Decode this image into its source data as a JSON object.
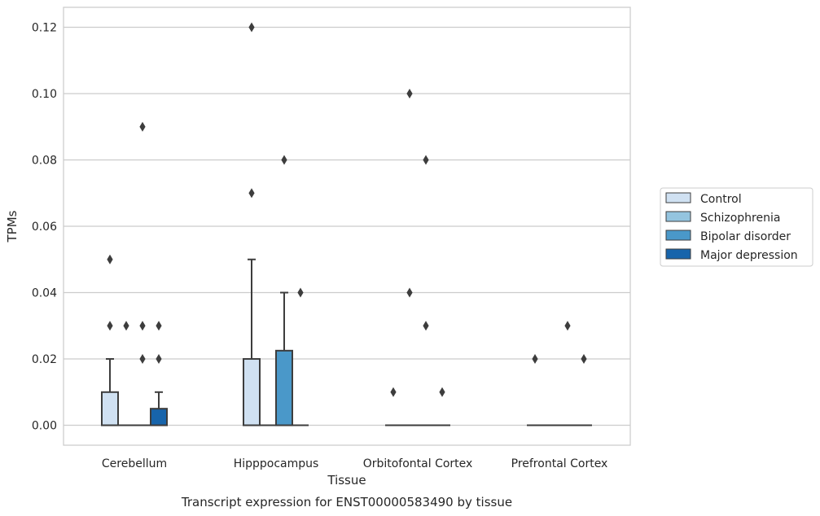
{
  "chart_data": {
    "type": "box",
    "xlabel": "Tissue",
    "ylabel": "TPMs",
    "caption": "Transcript expression for ENST00000583490 by tissue",
    "ylim": [
      -0.006,
      0.126
    ],
    "yticks": [
      0.0,
      0.02,
      0.04,
      0.06,
      0.08,
      0.1,
      0.12
    ],
    "ytick_labels": [
      "0.00",
      "0.02",
      "0.04",
      "0.06",
      "0.08",
      "0.10",
      "0.12"
    ],
    "grid": true,
    "legend_placement": "right",
    "categories": [
      "Cerebellum",
      "Hipppocampus",
      "Orbitofontal Cortex",
      "Prefrontal Cortex"
    ],
    "series": [
      {
        "name": "Control",
        "color": "#d0e1f2",
        "boxes": [
          {
            "q1": 0,
            "median": 0,
            "q3": 0.01,
            "whisker_low": 0,
            "whisker_high": 0.02,
            "outliers": [
              0.03,
              0.05
            ]
          },
          {
            "q1": 0,
            "median": 0,
            "q3": 0.02,
            "whisker_low": 0,
            "whisker_high": 0.05,
            "outliers": [
              0.07,
              0.12
            ]
          },
          {
            "q1": 0,
            "median": 0,
            "q3": 0,
            "whisker_low": 0,
            "whisker_high": 0,
            "outliers": [
              0.01
            ]
          },
          {
            "q1": 0,
            "median": 0,
            "q3": 0,
            "whisker_low": 0,
            "whisker_high": 0,
            "outliers": [
              0.02
            ]
          }
        ]
      },
      {
        "name": "Schizophrenia",
        "color": "#94c4df",
        "boxes": [
          {
            "q1": 0,
            "median": 0,
            "q3": 0,
            "whisker_low": 0,
            "whisker_high": 0,
            "outliers": [
              0.03
            ]
          },
          {
            "q1": 0,
            "median": 0,
            "q3": 0,
            "whisker_low": 0,
            "whisker_high": 0,
            "outliers": []
          },
          {
            "q1": 0,
            "median": 0,
            "q3": 0,
            "whisker_low": 0,
            "whisker_high": 0,
            "outliers": [
              0.04,
              0.1
            ]
          },
          {
            "q1": 0,
            "median": 0,
            "q3": 0,
            "whisker_low": 0,
            "whisker_high": 0,
            "outliers": []
          }
        ]
      },
      {
        "name": "Bipolar disorder",
        "color": "#4a98c9",
        "boxes": [
          {
            "q1": 0,
            "median": 0,
            "q3": 0,
            "whisker_low": 0,
            "whisker_high": 0,
            "outliers": [
              0.02,
              0.03,
              0.09
            ]
          },
          {
            "q1": 0,
            "median": 0,
            "q3": 0.0225,
            "whisker_low": 0,
            "whisker_high": 0.04,
            "outliers": [
              0.08
            ]
          },
          {
            "q1": 0,
            "median": 0,
            "q3": 0,
            "whisker_low": 0,
            "whisker_high": 0,
            "outliers": [
              0.03,
              0.08
            ]
          },
          {
            "q1": 0,
            "median": 0,
            "q3": 0,
            "whisker_low": 0,
            "whisker_high": 0,
            "outliers": [
              0.03
            ]
          }
        ]
      },
      {
        "name": "Major depression",
        "color": "#1764ab",
        "boxes": [
          {
            "q1": 0,
            "median": 0,
            "q3": 0.005,
            "whisker_low": 0,
            "whisker_high": 0.01,
            "outliers": [
              0.02,
              0.03
            ]
          },
          {
            "q1": 0,
            "median": 0,
            "q3": 0,
            "whisker_low": 0,
            "whisker_high": 0,
            "outliers": [
              0.04
            ]
          },
          {
            "q1": 0,
            "median": 0,
            "q3": 0,
            "whisker_low": 0,
            "whisker_high": 0,
            "outliers": [
              0.01
            ]
          },
          {
            "q1": 0,
            "median": 0,
            "q3": 0,
            "whisker_low": 0,
            "whisker_high": 0,
            "outliers": [
              0.02
            ]
          }
        ]
      }
    ]
  }
}
